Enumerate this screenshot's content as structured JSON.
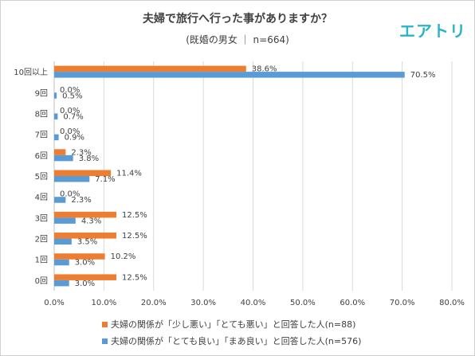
{
  "title": "夫婦で旅行へ行った事がありますか？",
  "subtitle": "(既婚の男女 ｜ n=664)",
  "logo": "エアトリ",
  "chart_data": {
    "type": "bar",
    "orientation": "horizontal",
    "categories": [
      "10回以上",
      "9回",
      "8回",
      "7回",
      "6回",
      "5回",
      "4回",
      "3回",
      "2回",
      "1回",
      "0回"
    ],
    "series": [
      {
        "name": "夫婦の関係が「少し悪い」「とても悪い」と回答した人(n=88)",
        "color": "#ed7d31",
        "values": [
          38.6,
          0.0,
          0.0,
          0.0,
          2.3,
          11.4,
          0.0,
          12.5,
          12.5,
          10.2,
          12.5
        ],
        "labels": [
          "38.6%",
          "0.0%",
          "0.0%",
          "0.0%",
          "2.3%",
          "11.4%",
          "0.0%",
          "12.5%",
          "12.5%",
          "10.2%",
          "12.5%"
        ]
      },
      {
        "name": "夫婦の関係が「とても良い」「まあ良い」と回答した人(n=576)",
        "color": "#5b9bd5",
        "values": [
          70.5,
          0.5,
          0.7,
          0.9,
          3.8,
          7.1,
          2.3,
          4.3,
          3.5,
          3.0,
          3.0
        ],
        "labels": [
          "70.5%",
          "0.5%",
          "0.7%",
          "0.9%",
          "3.8%",
          "7.1%",
          "2.3%",
          "4.3%",
          "3.5%",
          "3.0%",
          "3.0%"
        ]
      }
    ],
    "xlim": [
      0,
      80
    ],
    "xticks": [
      "0.0%",
      "10.0%",
      "20.0%",
      "30.0%",
      "40.0%",
      "50.0%",
      "60.0%",
      "70.0%",
      "80.0%"
    ],
    "xtick_values": [
      0,
      10,
      20,
      30,
      40,
      50,
      60,
      70,
      80
    ],
    "grid": true,
    "legend_position": "bottom"
  }
}
